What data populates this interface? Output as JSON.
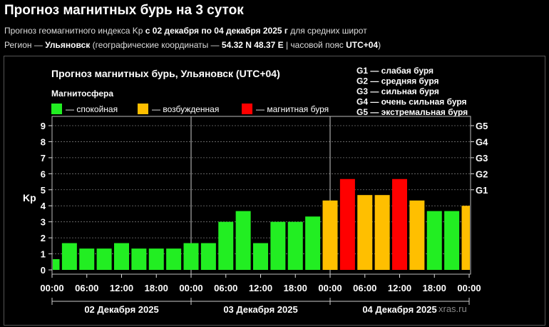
{
  "page": {
    "title": "Прогноз магнитных бурь на 3 суток",
    "line1_prefix": "Прогноз геомагнитного индекса Kp ",
    "line1_bold": "с 02 декабря по 04 декабря 2025 г",
    "line1_suffix": " для средних широт",
    "line2_prefix": "Регион — ",
    "line2_region": "Ульяновск",
    "line2_mid": " (географические координаты — ",
    "line2_coords": "54.32 N 48.37 E",
    "line2_sep": " | часовой пояс ",
    "line2_tz": "UTC+04",
    "line2_end": ")"
  },
  "chart_data": {
    "type": "bar",
    "title": "Прогноз магнитных бурь, Ульяновск (UTC+04)",
    "ylabel": "Kp",
    "ylim": [
      0,
      9
    ],
    "yticks": [
      0,
      1,
      2,
      3,
      4,
      5,
      6,
      7,
      8,
      9
    ],
    "legend_title": "Магнитосфера",
    "legend": [
      {
        "label": "— спокойная",
        "color": "#22ee22"
      },
      {
        "label": "— возбужденная",
        "color": "#ffbf00"
      },
      {
        "label": "— магнитная буря",
        "color": "#ff0000"
      }
    ],
    "g_scale": [
      {
        "label": "G1 — слабая буря",
        "tick": "G1",
        "kp": 5
      },
      {
        "label": "G2 — средняя буря",
        "tick": "G2",
        "kp": 6
      },
      {
        "label": "G3 — сильная буря",
        "tick": "G3",
        "kp": 7
      },
      {
        "label": "G4 — очень сильная буря",
        "tick": "G4",
        "kp": 8
      },
      {
        "label": "G5 — экстремальная буря",
        "tick": "G5",
        "kp": 9
      }
    ],
    "x_tick_labels": [
      "00:00",
      "06:00",
      "12:00",
      "18:00",
      "00:00",
      "06:00",
      "12:00",
      "18:00",
      "00:00",
      "06:00",
      "12:00",
      "18:00",
      "00:00"
    ],
    "days": [
      "02 Декабря 2025",
      "03 Декабря 2025",
      "04 Декабря 2025"
    ],
    "values": [
      0.67,
      1.67,
      1.33,
      1.33,
      1.67,
      1.33,
      1.33,
      1.33,
      1.67,
      1.67,
      3.0,
      3.67,
      1.67,
      3.0,
      3.0,
      3.33,
      4.33,
      5.67,
      4.67,
      4.67,
      5.67,
      4.33,
      3.67,
      3.67,
      4.0
    ],
    "levels": [
      "calm",
      "calm",
      "calm",
      "calm",
      "calm",
      "calm",
      "calm",
      "calm",
      "calm",
      "calm",
      "calm",
      "calm",
      "calm",
      "calm",
      "calm",
      "calm",
      "active",
      "storm",
      "active",
      "active",
      "storm",
      "active",
      "calm",
      "calm",
      "active"
    ],
    "level_colors": {
      "calm": "#22ee22",
      "active": "#ffbf00",
      "storm": "#ff0000"
    },
    "watermark": "xras.ru"
  }
}
